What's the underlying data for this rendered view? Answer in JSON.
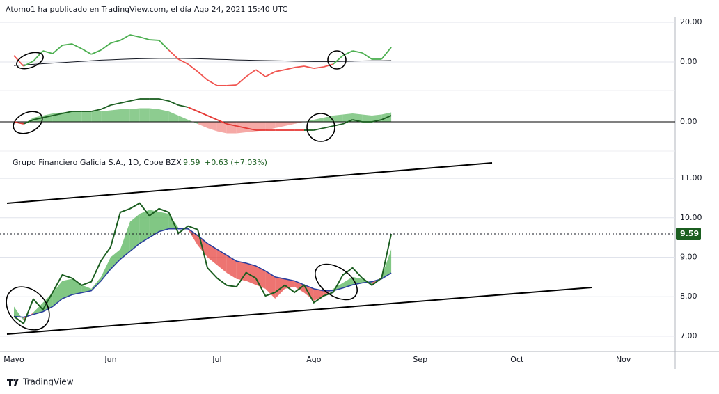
{
  "header": {
    "text": "Atomo1 ha publicado en TradingView.com, el día Ago 24, 2021 15:40 UTC"
  },
  "footer": {
    "brand": "TradingView"
  },
  "chart_data": [
    {
      "type": "oscillator",
      "ylim": [
        -14.4,
        20.7
      ],
      "yticks": [
        {
          "value": 20,
          "label": "20.00"
        },
        {
          "value": 0,
          "label": "0.00"
        }
      ],
      "up_color": "#4caf50",
      "down_color": "#f0534e",
      "values": [
        3.2,
        -2.1,
        0.4,
        5.6,
        4.2,
        8.4,
        9.1,
        6.7,
        3.9,
        6.0,
        9.5,
        10.9,
        13.7,
        12.6,
        11.2,
        10.9,
        6.0,
        1.4,
        -1.1,
        -4.9,
        -9.1,
        -11.9,
        -11.9,
        -11.6,
        -7.4,
        -3.9,
        -7.4,
        -4.9,
        -3.9,
        -2.8,
        -2.1,
        -3.2,
        -2.5,
        -1.1,
        3.2,
        5.6,
        4.6,
        1.4,
        1.4,
        7.4
      ],
      "signal_color": "#131722",
      "signal": [
        -1.8,
        -1.5,
        -1.2,
        -0.9,
        -0.6,
        -0.3,
        0,
        0.3,
        0.6,
        0.9,
        1.1,
        1.3,
        1.5,
        1.6,
        1.7,
        1.8,
        1.8,
        1.8,
        1.7,
        1.6,
        1.5,
        1.3,
        1.2,
        1.0,
        0.9,
        0.8,
        0.7,
        0.6,
        0.5,
        0.4,
        0.3,
        0.2,
        0.2,
        0.2,
        0.3,
        0.4,
        0.5,
        0.6,
        0.6,
        0.7
      ]
    },
    {
      "type": "histogram-area",
      "ylim": [
        -1.4,
        1.5
      ],
      "yticks": [
        {
          "value": 0,
          "label": "0.00"
        }
      ],
      "up_color": "#81c784",
      "down_color": "#f4a09c",
      "line_up_color": "#1b5e20",
      "line_down_color": "#e53935",
      "values": [
        0.0,
        -0.1,
        0.2,
        0.3,
        0.4,
        0.45,
        0.5,
        0.5,
        0.5,
        0.5,
        0.55,
        0.6,
        0.6,
        0.65,
        0.65,
        0.6,
        0.5,
        0.3,
        0.1,
        -0.1,
        -0.3,
        -0.45,
        -0.55,
        -0.55,
        -0.5,
        -0.45,
        -0.4,
        -0.3,
        -0.2,
        -0.1,
        0.0,
        0.1,
        0.2,
        0.3,
        0.35,
        0.4,
        0.35,
        0.3,
        0.35,
        0.45
      ],
      "line": [
        0.0,
        -0.1,
        0.1,
        0.2,
        0.3,
        0.4,
        0.5,
        0.5,
        0.5,
        0.6,
        0.8,
        0.9,
        1.0,
        1.1,
        1.1,
        1.1,
        1.0,
        0.8,
        0.7,
        0.5,
        0.3,
        0.1,
        -0.1,
        -0.2,
        -0.3,
        -0.4,
        -0.4,
        -0.4,
        -0.4,
        -0.4,
        -0.4,
        -0.4,
        -0.3,
        -0.2,
        -0.1,
        0.1,
        0.0,
        0.0,
        0.1,
        0.3
      ]
    },
    {
      "type": "line",
      "title": "Grupo Financiero Galicia S.A., 1D, Cboe BZX",
      "change": "+0.63 (+7.03%)",
      "ylim": [
        6.61,
        11.69
      ],
      "yticks": [
        {
          "value": 7,
          "label": "7.00"
        },
        {
          "value": 8,
          "label": "8.00"
        },
        {
          "value": 9,
          "label": "9.00"
        },
        {
          "value": 10,
          "label": "10.00"
        },
        {
          "value": 11,
          "label": "11.00"
        }
      ],
      "grid": true,
      "categories": [
        "Mayo",
        null,
        null,
        null,
        null,
        null,
        null,
        null,
        null,
        null,
        "Jun",
        null,
        null,
        null,
        null,
        null,
        null,
        null,
        null,
        null,
        null,
        "Jul",
        null,
        null,
        null,
        null,
        null,
        null,
        null,
        null,
        null,
        "Ago",
        null,
        null,
        null,
        null,
        null,
        null,
        null,
        null,
        null,
        null,
        "Sep",
        null,
        null,
        null,
        null,
        null,
        null,
        null,
        null,
        null,
        "Oct",
        null,
        null,
        null,
        null,
        null,
        null,
        null,
        null,
        null,
        null,
        "Nov",
        null,
        null,
        null,
        null,
        null
      ],
      "cloud_up_color": "#4caf50",
      "cloud_down_color": "#e53935",
      "series": [
        {
          "color": "#1b5e20",
          "values": [
            7.5,
            7.32,
            7.94,
            7.67,
            8.11,
            8.55,
            8.47,
            8.29,
            8.38,
            8.91,
            9.26,
            10.14,
            10.23,
            10.37,
            10.05,
            10.23,
            10.14,
            9.61,
            9.79,
            9.7,
            8.73,
            8.47,
            8.29,
            8.25,
            8.61,
            8.47,
            8.02,
            8.11,
            8.29,
            8.11,
            8.29,
            7.85,
            8.02,
            8.11,
            8.55,
            8.73,
            8.47,
            8.29,
            8.47,
            9.59,
            null,
            null,
            null,
            null,
            null,
            null,
            null,
            null,
            null,
            null,
            null,
            null,
            null,
            null,
            null,
            null,
            null,
            null,
            null,
            null,
            null,
            null,
            null,
            null,
            null,
            null,
            null,
            null,
            null
          ]
        },
        {
          "color": "#2a3f9e",
          "values": [
            7.5,
            7.48,
            7.55,
            7.62,
            7.75,
            7.95,
            8.05,
            8.1,
            8.15,
            8.4,
            8.7,
            8.95,
            9.15,
            9.35,
            9.5,
            9.65,
            9.72,
            9.72,
            9.72,
            9.55,
            9.35,
            9.2,
            9.05,
            8.9,
            8.85,
            8.78,
            8.65,
            8.5,
            8.45,
            8.4,
            8.3,
            8.2,
            8.15,
            8.15,
            8.22,
            8.3,
            8.35,
            8.38,
            8.45,
            8.6,
            null,
            null,
            null,
            null,
            null,
            null,
            null,
            null,
            null,
            null,
            null,
            null,
            null,
            null,
            null,
            null,
            null,
            null,
            null,
            null,
            null,
            null,
            null,
            null,
            null,
            null,
            null,
            null,
            null
          ]
        },
        {
          "color": "#4caf50",
          "values": [
            7.75,
            7.4,
            7.6,
            7.85,
            8.1,
            8.4,
            8.45,
            8.3,
            8.2,
            8.5,
            9.0,
            9.2,
            9.9,
            10.1,
            10.2,
            10.15,
            10.1,
            9.75,
            9.7,
            9.3,
            9.0,
            8.8,
            8.6,
            8.45,
            8.4,
            8.3,
            8.2,
            7.95,
            8.2,
            8.25,
            8.1,
            7.9,
            8.0,
            8.2,
            8.35,
            8.5,
            8.45,
            8.3,
            8.5,
            9.2,
            null,
            null,
            null,
            null,
            null,
            null,
            null,
            null,
            null,
            null,
            null,
            null,
            null,
            null,
            null,
            null,
            null,
            null,
            null,
            null,
            null,
            null,
            null,
            null,
            null,
            null,
            null,
            null,
            null
          ]
        }
      ]
    }
  ]
}
